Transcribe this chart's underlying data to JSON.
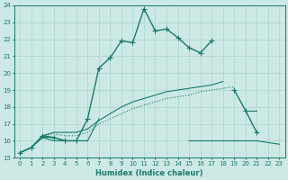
{
  "xlabel": "Humidex (Indice chaleur)",
  "x_values": [
    0,
    1,
    2,
    3,
    4,
    5,
    6,
    7,
    8,
    9,
    10,
    11,
    12,
    13,
    14,
    15,
    16,
    17,
    18,
    19,
    20,
    21,
    22,
    23
  ],
  "line_main_y": [
    15.3,
    15.6,
    16.3,
    16.2,
    16.0,
    16.0,
    17.3,
    20.3,
    20.9,
    21.9,
    21.8,
    23.8,
    22.5,
    22.6,
    22.1,
    21.5,
    21.2,
    21.9,
    null,
    19.0,
    17.8,
    16.5,
    null,
    null
  ],
  "line_rising_y": [
    15.3,
    15.6,
    16.3,
    16.4,
    16.3,
    16.3,
    16.5,
    17.0,
    17.3,
    17.6,
    17.9,
    18.1,
    18.3,
    18.5,
    18.6,
    18.7,
    18.9,
    19.0,
    19.1,
    19.2,
    null,
    null,
    null,
    null
  ],
  "line_flat_y": [
    15.3,
    15.6,
    16.2,
    16.0,
    16.0,
    16.0,
    16.0,
    null,
    null,
    null,
    null,
    null,
    null,
    null,
    null,
    16.0,
    16.0,
    16.0,
    16.0,
    16.0,
    16.0,
    16.0,
    15.9,
    15.8
  ],
  "line_short_y": [
    null,
    null,
    16.2,
    16.2,
    16.0,
    16.0,
    16.0,
    17.3,
    null,
    null,
    null,
    null,
    null,
    null,
    null,
    null,
    null,
    null,
    null,
    null,
    null,
    null,
    null,
    null
  ],
  "line_rising2_y": [
    15.3,
    15.6,
    16.3,
    16.5,
    16.5,
    16.5,
    16.7,
    17.2,
    17.6,
    18.0,
    18.3,
    18.5,
    18.7,
    18.9,
    19.0,
    19.1,
    19.2,
    19.3,
    19.5,
    null,
    17.8,
    17.8,
    null,
    null
  ],
  "line_color": "#1a7a6a",
  "bg_color": "#cde9e5",
  "grid_color": "#aad4ce",
  "ylim": [
    15,
    24
  ],
  "xlim": [
    -0.5,
    23.5
  ],
  "yticks": [
    15,
    16,
    17,
    18,
    19,
    20,
    21,
    22,
    23,
    24
  ],
  "xticks": [
    0,
    1,
    2,
    3,
    4,
    5,
    6,
    7,
    8,
    9,
    10,
    11,
    12,
    13,
    14,
    15,
    16,
    17,
    18,
    19,
    20,
    21,
    22,
    23
  ]
}
